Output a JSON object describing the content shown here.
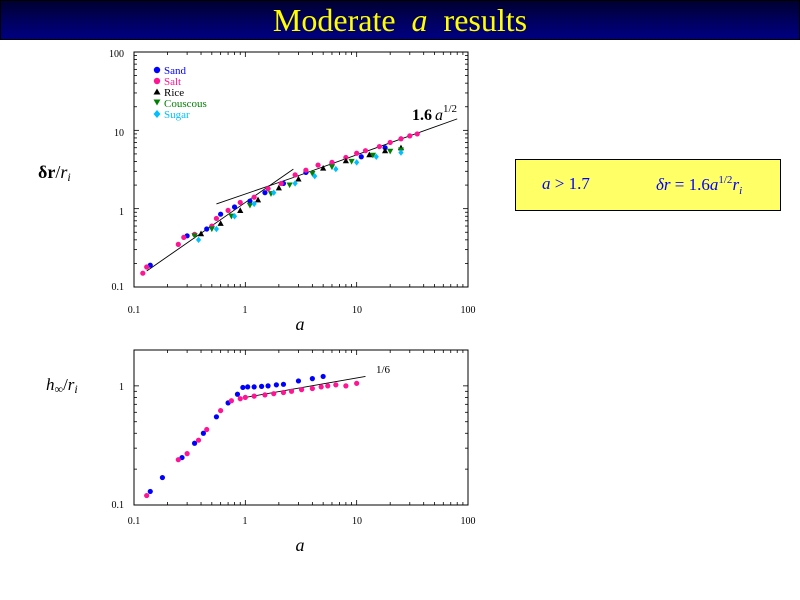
{
  "title": {
    "prefix": "Moderate",
    "variable": "a",
    "suffix": "results"
  },
  "formula_box": {
    "condition": {
      "variable": "a",
      "operator": ">",
      "value": "1.7"
    },
    "relation": {
      "lhs_symbol": "δr",
      "equals": "=",
      "coefficient": "1.6",
      "variable": "a",
      "exponent": "1/2",
      "r_symbol": "r",
      "r_subscript": "i"
    }
  },
  "colors": {
    "title_text": "#ffff00",
    "title_bg": "#000060",
    "sand": "#0000ff",
    "salt": "#ff1493",
    "rice": "#000000",
    "couscous": "#008000",
    "sugar": "#00bfff",
    "formula_bg": "#ffff66",
    "formula_text": "#0000ff"
  },
  "chart_data": [
    {
      "type": "scatter",
      "scale": "log-log",
      "xlabel": "a",
      "ylabel_main": "δr",
      "ylabel_divider": "/",
      "ylabel_den": "r",
      "ylabel_sub": "i",
      "xlim": [
        0.1,
        100
      ],
      "ylim": [
        0.1,
        100
      ],
      "x_ticks": [
        "0.1",
        "1",
        "10",
        "100"
      ],
      "y_ticks": [
        "0.1",
        "1",
        "10",
        "100"
      ],
      "legend_placement": "top-left",
      "fit_label": {
        "coefficient": "1.6",
        "variable": "a",
        "exponent": "1/2"
      },
      "fit_lines": [
        {
          "x": [
            0.13,
            2.7
          ],
          "y": [
            0.16,
            3.2
          ]
        },
        {
          "x": [
            0.55,
            2.7
          ],
          "y": [
            1.15,
            2.5
          ]
        },
        {
          "x": [
            2.7,
            80
          ],
          "y": [
            2.5,
            14
          ]
        }
      ],
      "series": [
        {
          "name": "Sand",
          "marker": "circle",
          "color": "#0000ff",
          "points": [
            [
              0.14,
              0.19
            ],
            [
              0.3,
              0.45
            ],
            [
              0.45,
              0.55
            ],
            [
              0.6,
              0.85
            ],
            [
              0.8,
              1.05
            ],
            [
              1.1,
              1.25
            ],
            [
              1.5,
              1.6
            ],
            [
              2.2,
              2.1
            ],
            [
              3.5,
              2.9
            ],
            [
              6,
              3.8
            ],
            [
              11,
              4.6
            ],
            [
              18,
              6
            ]
          ]
        },
        {
          "name": "Salt",
          "marker": "circle",
          "color": "#ff1493",
          "points": [
            [
              0.12,
              0.15
            ],
            [
              0.13,
              0.18
            ],
            [
              0.25,
              0.35
            ],
            [
              0.28,
              0.43
            ],
            [
              0.35,
              0.47
            ],
            [
              0.5,
              0.6
            ],
            [
              0.55,
              0.75
            ],
            [
              0.7,
              0.95
            ],
            [
              0.9,
              1.2
            ],
            [
              1.2,
              1.4
            ],
            [
              1.6,
              1.8
            ],
            [
              2.1,
              2.1
            ],
            [
              2.8,
              2.7
            ],
            [
              3.5,
              3.1
            ],
            [
              4.5,
              3.6
            ],
            [
              6,
              3.9
            ],
            [
              8,
              4.5
            ],
            [
              10,
              5.1
            ],
            [
              12,
              5.5
            ],
            [
              16,
              6.2
            ],
            [
              20,
              7
            ],
            [
              25,
              7.8
            ],
            [
              30,
              8.5
            ],
            [
              35,
              9
            ]
          ]
        },
        {
          "name": "Rice",
          "marker": "triangle-up",
          "color": "#000000",
          "points": [
            [
              0.4,
              0.48
            ],
            [
              0.6,
              0.65
            ],
            [
              0.9,
              0.95
            ],
            [
              1.3,
              1.3
            ],
            [
              2,
              1.85
            ],
            [
              3,
              2.4
            ],
            [
              5,
              3.3
            ],
            [
              8,
              4.1
            ],
            [
              13,
              4.9
            ],
            [
              18,
              5.5
            ],
            [
              25,
              6
            ]
          ]
        },
        {
          "name": "Couscous",
          "marker": "triangle-down",
          "color": "#008000",
          "points": [
            [
              0.35,
              0.45
            ],
            [
              0.5,
              0.55
            ],
            [
              0.75,
              0.8
            ],
            [
              1.1,
              1.1
            ],
            [
              1.7,
              1.55
            ],
            [
              2.5,
              2
            ],
            [
              4,
              2.8
            ],
            [
              6,
              3.4
            ],
            [
              9,
              4
            ],
            [
              14,
              4.8
            ],
            [
              20,
              5.4
            ],
            [
              25,
              5.6
            ]
          ]
        },
        {
          "name": "Sugar",
          "marker": "diamond",
          "color": "#00bfff",
          "points": [
            [
              0.38,
              0.4
            ],
            [
              0.55,
              0.55
            ],
            [
              0.8,
              0.8
            ],
            [
              1.2,
              1.15
            ],
            [
              1.8,
              1.6
            ],
            [
              2.8,
              2.1
            ],
            [
              4.2,
              2.6
            ],
            [
              6.5,
              3.2
            ],
            [
              10,
              3.9
            ],
            [
              15,
              4.6
            ],
            [
              25,
              5.2
            ]
          ]
        }
      ]
    },
    {
      "type": "scatter",
      "scale": "log-log",
      "xlabel": "a",
      "ylabel_main": "h",
      "ylabel_main_sub": "∞",
      "ylabel_divider": "/",
      "ylabel_den": "r",
      "ylabel_sub": "i",
      "xlim": [
        0.1,
        100
      ],
      "ylim": [
        0.1,
        2
      ],
      "x_ticks": [
        "0.1",
        "1",
        "10",
        "100"
      ],
      "y_ticks": [
        "0.1",
        "1"
      ],
      "fit_label": "1/6",
      "fit_lines": [
        {
          "x": [
            1,
            12
          ],
          "y": [
            0.8,
            1.2
          ]
        }
      ],
      "series": [
        {
          "name": "Sand",
          "marker": "circle",
          "color": "#0000ff",
          "points": [
            [
              0.14,
              0.13
            ],
            [
              0.18,
              0.17
            ],
            [
              0.27,
              0.25
            ],
            [
              0.35,
              0.33
            ],
            [
              0.42,
              0.4
            ],
            [
              0.55,
              0.55
            ],
            [
              0.7,
              0.72
            ],
            [
              0.85,
              0.85
            ],
            [
              0.95,
              0.97
            ],
            [
              1.05,
              0.98
            ],
            [
              1.2,
              0.98
            ],
            [
              1.4,
              0.99
            ],
            [
              1.6,
              1.0
            ],
            [
              1.9,
              1.02
            ],
            [
              2.2,
              1.03
            ],
            [
              3,
              1.1
            ],
            [
              4,
              1.15
            ],
            [
              5,
              1.2
            ]
          ]
        },
        {
          "name": "Salt",
          "marker": "circle",
          "color": "#ff1493",
          "points": [
            [
              0.13,
              0.12
            ],
            [
              0.25,
              0.24
            ],
            [
              0.3,
              0.27
            ],
            [
              0.38,
              0.35
            ],
            [
              0.45,
              0.43
            ],
            [
              0.6,
              0.62
            ],
            [
              0.75,
              0.75
            ],
            [
              0.9,
              0.78
            ],
            [
              1.0,
              0.8
            ],
            [
              1.2,
              0.82
            ],
            [
              1.5,
              0.84
            ],
            [
              1.8,
              0.86
            ],
            [
              2.2,
              0.88
            ],
            [
              2.6,
              0.9
            ],
            [
              3.2,
              0.93
            ],
            [
              4,
              0.95
            ],
            [
              4.8,
              0.98
            ],
            [
              5.5,
              1.0
            ],
            [
              6.5,
              1.02
            ],
            [
              8,
              1.0
            ],
            [
              10,
              1.05
            ]
          ]
        }
      ]
    }
  ]
}
